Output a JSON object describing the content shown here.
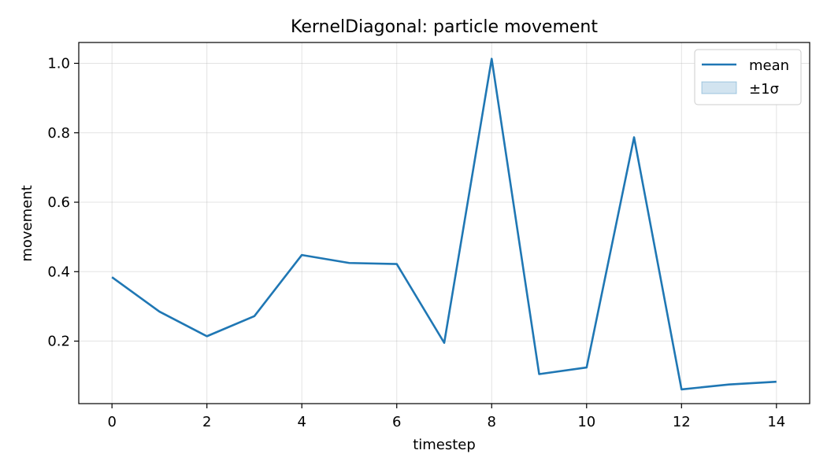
{
  "chart_data": {
    "type": "line",
    "title": "KernelDiagonal: particle movement",
    "xlabel": "timestep",
    "ylabel": "movement",
    "xlim": [
      -0.7,
      14.7
    ],
    "ylim": [
      0.02,
      1.06
    ],
    "xticks": [
      0,
      2,
      4,
      6,
      8,
      10,
      12,
      14
    ],
    "yticks": [
      0.2,
      0.4,
      0.6,
      0.8,
      1.0
    ],
    "xtick_labels": [
      "0",
      "2",
      "4",
      "6",
      "8",
      "10",
      "12",
      "14"
    ],
    "ytick_labels": [
      "0.2",
      "0.4",
      "0.6",
      "0.8",
      "1.0"
    ],
    "grid": true,
    "legend_position": "top-right",
    "series": [
      {
        "name": "mean",
        "color": "#1f77b4",
        "x": [
          0,
          1,
          2,
          3,
          4,
          5,
          6,
          7,
          8,
          9,
          10,
          11,
          12,
          13,
          14
        ],
        "values": [
          0.384,
          0.285,
          0.214,
          0.272,
          0.448,
          0.425,
          0.422,
          0.195,
          1.013,
          0.105,
          0.124,
          0.787,
          0.061,
          0.075,
          0.083
        ]
      }
    ],
    "band": {
      "name": "±1σ",
      "color": "#1f77b4",
      "lower": [
        0.384,
        0.285,
        0.214,
        0.272,
        0.448,
        0.425,
        0.422,
        0.195,
        1.013,
        0.105,
        0.124,
        0.787,
        0.061,
        0.075,
        0.083
      ],
      "upper": [
        0.384,
        0.285,
        0.214,
        0.272,
        0.448,
        0.425,
        0.422,
        0.195,
        1.013,
        0.105,
        0.124,
        0.787,
        0.061,
        0.075,
        0.083
      ]
    },
    "legend": [
      "mean",
      "±1σ"
    ]
  }
}
